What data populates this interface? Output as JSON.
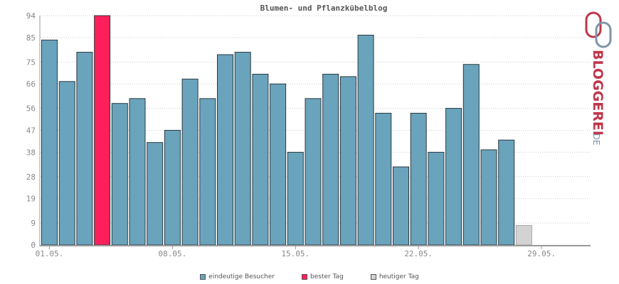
{
  "chart_data": {
    "type": "bar",
    "title": "Blumen- und Pflanzkübelblog",
    "yticks": [
      0,
      9,
      19,
      28,
      38,
      47,
      56,
      66,
      75,
      85,
      94
    ],
    "ylim": [
      0,
      94
    ],
    "xtick_labels": [
      {
        "label": "01.05.",
        "day": 1
      },
      {
        "label": "08.05.",
        "day": 8
      },
      {
        "label": "15.05.",
        "day": 15
      },
      {
        "label": "22.05.",
        "day": 22
      },
      {
        "label": "29.05.",
        "day": 29
      }
    ],
    "days": [
      1,
      2,
      3,
      4,
      5,
      6,
      7,
      8,
      9,
      10,
      11,
      12,
      13,
      14,
      15,
      16,
      17,
      18,
      19,
      20,
      21,
      22,
      23,
      24,
      25,
      26,
      27,
      28
    ],
    "values": [
      84,
      67,
      79,
      94,
      58,
      60,
      42,
      47,
      68,
      60,
      78,
      79,
      70,
      66,
      38,
      60,
      70,
      69,
      86,
      54,
      32,
      54,
      38,
      56,
      74,
      39,
      43,
      8
    ],
    "bar_kinds": [
      "normal",
      "normal",
      "normal",
      "best",
      "normal",
      "normal",
      "normal",
      "normal",
      "normal",
      "normal",
      "normal",
      "normal",
      "normal",
      "normal",
      "normal",
      "normal",
      "normal",
      "normal",
      "normal",
      "normal",
      "normal",
      "normal",
      "normal",
      "normal",
      "normal",
      "normal",
      "normal",
      "today"
    ],
    "grid": true,
    "colors": {
      "normal": "#6aa3bc",
      "best": "#ff1f5a",
      "today": "#d3d3d3",
      "axis": "#999999",
      "grid": "#cccccc"
    },
    "legend": [
      {
        "label": "eindeutige Besucher",
        "color": "#6aa3bc"
      },
      {
        "label": "bester Tag",
        "color": "#ff1f5a"
      },
      {
        "label": "heutiger Tag",
        "color": "#d3d3d3"
      }
    ],
    "legend_position": "bottom-center"
  },
  "logo": {
    "text_main": "BLOGGEREI",
    "text_suffix": ".DE",
    "color_main": "#c0354a",
    "color_suffix": "#7f95a8"
  }
}
